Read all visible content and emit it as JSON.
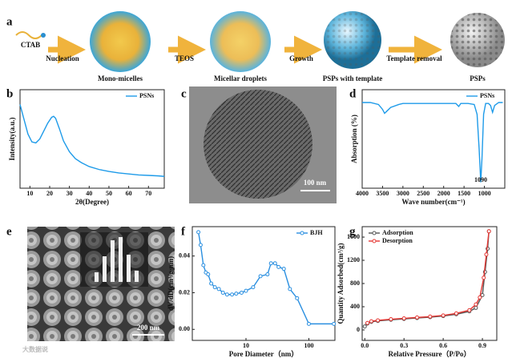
{
  "schematic": {
    "label": "a",
    "start": "CTAB",
    "steps": [
      "Nucleation",
      "TEOS",
      "Growth",
      "Template removal"
    ],
    "stages": [
      "Mono-micelles",
      "Micellar droplets",
      "PSPs with template",
      "PSPs"
    ]
  },
  "images": [
    {
      "label": "c",
      "scale_bar": "100 nm"
    },
    {
      "label": "e",
      "scale_bar": "200 nm"
    }
  ],
  "watermark": "大数据说",
  "chart_data": [
    {
      "type": "line",
      "label": "b",
      "xlabel": "2θ(Degree)",
      "ylabel": "Intensity(a.u.)",
      "xlim": [
        5,
        78
      ],
      "ylim": [
        0,
        1
      ],
      "xticks": [
        10,
        20,
        30,
        40,
        50,
        60,
        70
      ],
      "legend": "upper right",
      "x": [
        5,
        7,
        9,
        11,
        13,
        15,
        17,
        19,
        21,
        22,
        23,
        25,
        27,
        30,
        33,
        36,
        40,
        45,
        50,
        55,
        60,
        65,
        70,
        75,
        78
      ],
      "series": [
        {
          "name": "PSNs",
          "color": "#1e9be9",
          "values": [
            0.85,
            0.7,
            0.55,
            0.47,
            0.46,
            0.5,
            0.58,
            0.66,
            0.72,
            0.73,
            0.71,
            0.6,
            0.48,
            0.37,
            0.3,
            0.26,
            0.22,
            0.19,
            0.17,
            0.155,
            0.145,
            0.135,
            0.13,
            0.125,
            0.12
          ]
        }
      ]
    },
    {
      "type": "line",
      "label": "d",
      "xlabel": "Wave number(cm⁻¹)",
      "ylabel": "Absorption (%)",
      "xlim": [
        4000,
        500
      ],
      "ylim": [
        0,
        1
      ],
      "xticks": [
        4000,
        3500,
        3000,
        2500,
        2000,
        1500,
        1000
      ],
      "legend": "upper right",
      "annotations": [
        {
          "x": 1090,
          "text": "1090"
        }
      ],
      "x": [
        4000,
        3800,
        3600,
        3500,
        3450,
        3400,
        3300,
        3100,
        3000,
        2500,
        2000,
        1700,
        1630,
        1580,
        1400,
        1250,
        1180,
        1130,
        1090,
        1060,
        1020,
        970,
        900,
        850,
        800,
        750,
        650,
        550
      ],
      "series": [
        {
          "name": "PSNs",
          "color": "#1e9be9",
          "values": [
            0.87,
            0.87,
            0.85,
            0.8,
            0.76,
            0.78,
            0.82,
            0.85,
            0.86,
            0.86,
            0.86,
            0.86,
            0.83,
            0.86,
            0.86,
            0.85,
            0.75,
            0.4,
            0.06,
            0.3,
            0.75,
            0.86,
            0.86,
            0.84,
            0.77,
            0.84,
            0.87,
            0.87
          ]
        }
      ]
    },
    {
      "type": "line",
      "label": "f",
      "xlabel": "Pore Diameter（nm）",
      "ylabel": "dV/dD(cm³/g·nm)",
      "xscale": "log",
      "xlim": [
        1.4,
        260
      ],
      "ylim": [
        -0.006,
        0.056
      ],
      "xticks": [
        10,
        100
      ],
      "yticks": [
        {
          "value": 0,
          "label": "0.00"
        },
        {
          "value": 0.02,
          "label": "0.02"
        },
        {
          "value": 0.04,
          "label": "0.04"
        }
      ],
      "legend": "upper right",
      "markers": true,
      "x": [
        1.75,
        1.9,
        2.1,
        2.3,
        2.5,
        2.8,
        3.2,
        3.7,
        4.3,
        5,
        6,
        7,
        8.5,
        10,
        13,
        17,
        22,
        25,
        29,
        33,
        40,
        50,
        65,
        100,
        250
      ],
      "series": [
        {
          "name": "BJH",
          "color": "#2a8fe0",
          "values": [
            0.053,
            0.046,
            0.035,
            0.031,
            0.03,
            0.025,
            0.023,
            0.022,
            0.02,
            0.019,
            0.019,
            0.0195,
            0.02,
            0.021,
            0.023,
            0.029,
            0.03,
            0.036,
            0.036,
            0.034,
            0.033,
            0.022,
            0.017,
            0.003,
            0.003
          ]
        }
      ]
    },
    {
      "type": "line",
      "label": "g",
      "xlabel": "Relative Pressure（P/Po）",
      "ylabel": "Quantity Adsorbed(cm³/g)",
      "xlim": [
        -0.02,
        1.01
      ],
      "ylim": [
        -180,
        1780
      ],
      "xticks": [
        {
          "value": 0,
          "label": "0.0"
        },
        {
          "value": 0.3,
          "label": "0.3"
        },
        {
          "value": 0.6,
          "label": "0.6"
        },
        {
          "value": 0.9,
          "label": "0.9"
        }
      ],
      "yticks": [
        0,
        400,
        800,
        1200,
        1600
      ],
      "legend": "upper left",
      "markers": true,
      "series": [
        {
          "name": "Adsorption",
          "color": "#555555",
          "x": [
            0,
            0.02,
            0.05,
            0.1,
            0.2,
            0.3,
            0.4,
            0.5,
            0.6,
            0.7,
            0.8,
            0.85,
            0.9,
            0.92,
            0.94,
            0.95
          ],
          "values": [
            60,
            110,
            140,
            155,
            175,
            190,
            205,
            220,
            240,
            270,
            320,
            380,
            600,
            1000,
            1400,
            1700
          ]
        },
        {
          "name": "Desorption",
          "color": "#e53935",
          "x": [
            0.95,
            0.93,
            0.91,
            0.88,
            0.85,
            0.8,
            0.7,
            0.6,
            0.5,
            0.4,
            0.3,
            0.2,
            0.1,
            0.05,
            0.02
          ],
          "values": [
            1700,
            1300,
            900,
            560,
            440,
            340,
            285,
            250,
            230,
            215,
            200,
            185,
            165,
            150,
            120
          ]
        }
      ]
    }
  ]
}
